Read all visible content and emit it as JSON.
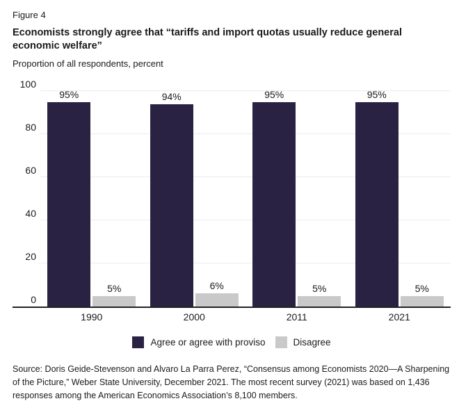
{
  "figure_label": "Figure 4",
  "title": "Economists strongly agree that “tariffs and import quotas usually reduce general economic welfare”",
  "subtitle": "Proportion of all respondents, percent",
  "colors": {
    "agree_bar": "#2a2243",
    "disagree_bar": "#c9c9c9",
    "gridline": "#ececec",
    "axis_line": "#222222"
  },
  "chart_data": {
    "type": "bar",
    "categories": [
      "1990",
      "2000",
      "2011",
      "2021"
    ],
    "series": [
      {
        "name": "Agree or agree with proviso",
        "color": "#2a2243",
        "values": [
          95,
          94,
          95,
          95
        ],
        "value_labels": [
          "95%",
          "94%",
          "95%",
          "95%"
        ]
      },
      {
        "name": "Disagree",
        "color": "#c9c9c9",
        "values": [
          5,
          6,
          5,
          5
        ],
        "value_labels": [
          "5%",
          "6%",
          "5%",
          "5%"
        ]
      }
    ],
    "title": "Economists strongly agree that “tariffs and import quotas usually reduce general economic welfare”",
    "xlabel": "",
    "ylabel": "Proportion of all respondents, percent",
    "ylim": [
      0,
      100
    ],
    "yticks": [
      0,
      20,
      40,
      60,
      80,
      100
    ],
    "grid": true,
    "legend_position": "bottom"
  },
  "source": "Source: Doris Geide-Stevenson and Alvaro La Parra Perez, “Consensus among Economists 2020—A Sharpening of the Picture,” Weber State University, December 2021. The most recent survey (2021) was based on 1,436 responses among the American Economics Association’s 8,100 members."
}
